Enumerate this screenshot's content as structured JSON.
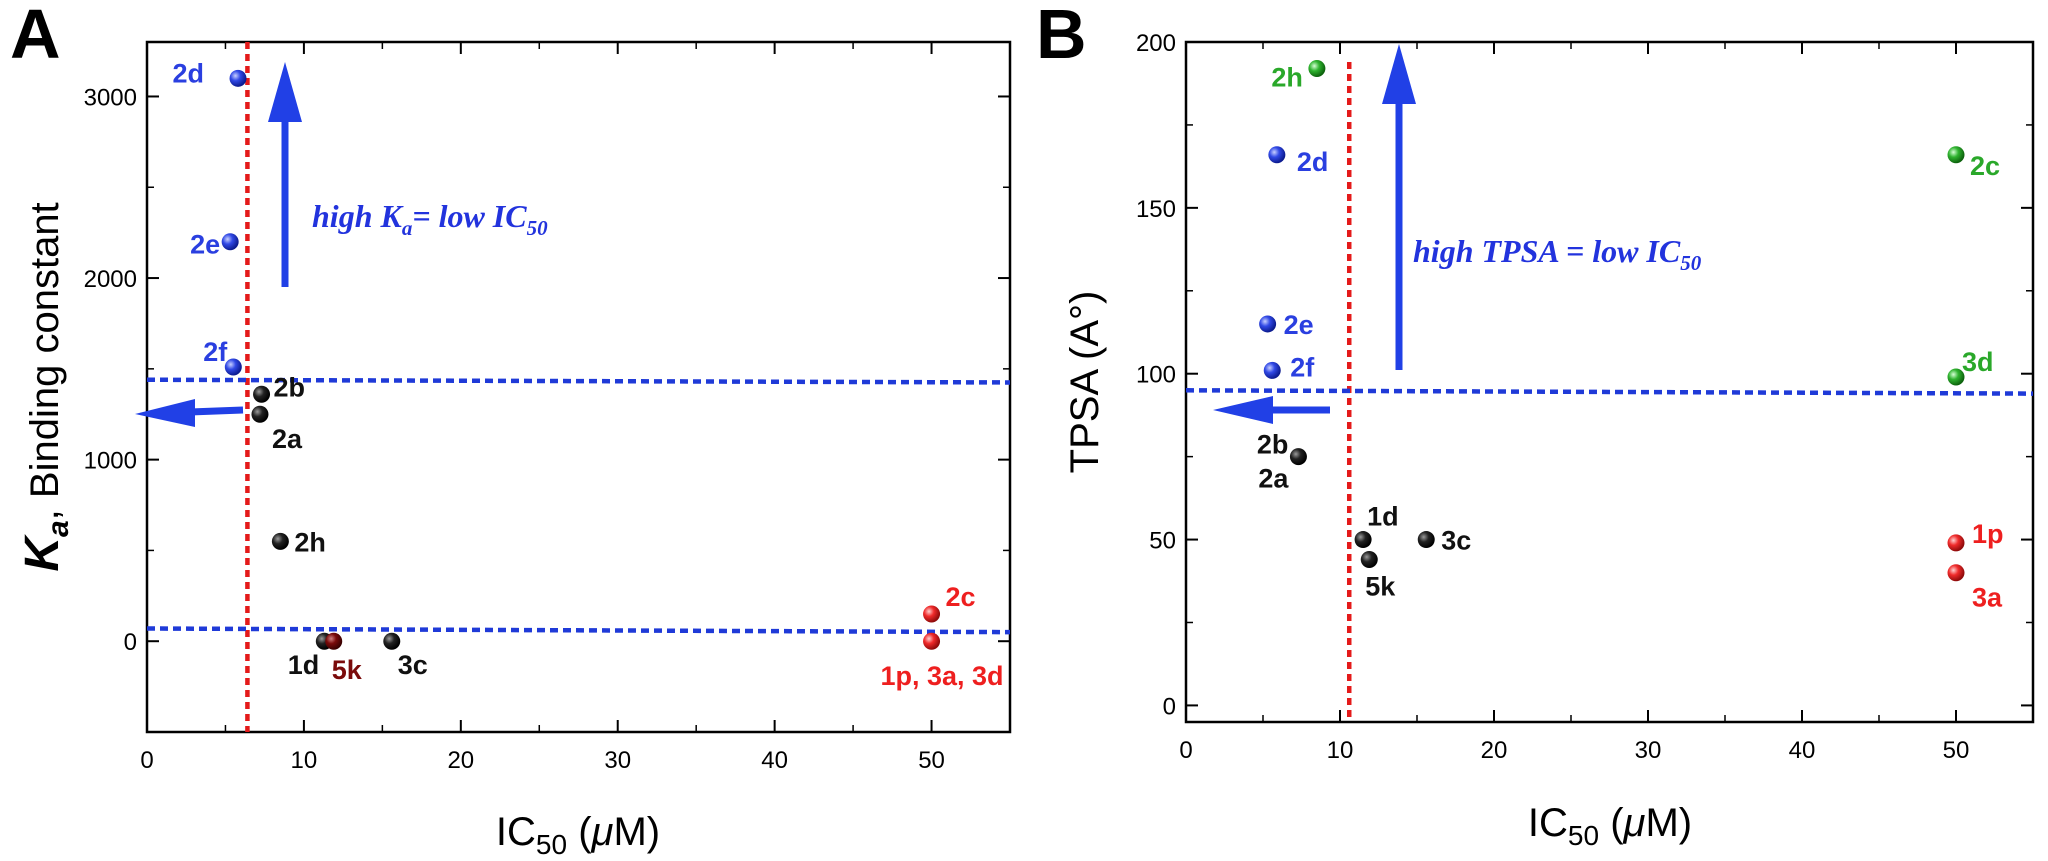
{
  "colors": {
    "black": "#111111",
    "blue": "#2a3fe0",
    "green": "#2aa82a",
    "red": "#ee1f1f",
    "darkred": "#7a0a0a",
    "ref_blue": "#1f3ad8",
    "ref_red": "#e41a1a",
    "arrow": "#2140e6",
    "anno": "#2233dd"
  },
  "chart_data": [
    {
      "panel": "A",
      "type": "scatter",
      "xlabel_main": "IC",
      "xlabel_sub": "50",
      "xlabel_tail": " (",
      "xlabel_mu": "μ",
      "xlabel_end": "M)",
      "ylabel_main": "K",
      "ylabel_sub": "a",
      "ylabel_tail": ", Binding constant",
      "xlim": [
        0,
        55
      ],
      "ylim": [
        -500,
        3300
      ],
      "xticks": [
        0,
        10,
        20,
        30,
        40,
        50
      ],
      "yticks": [
        0,
        1000,
        2000,
        3000
      ],
      "xtick_labels": [
        "0",
        "10",
        "20",
        "30",
        "40",
        "50"
      ],
      "ytick_labels": [
        "0",
        "1000",
        "2000",
        "3000"
      ],
      "points": [
        {
          "label": "2d",
          "x": 5.8,
          "y": 3100,
          "color": "blue"
        },
        {
          "label": "2e",
          "x": 5.3,
          "y": 2200,
          "color": "blue"
        },
        {
          "label": "2f",
          "x": 5.5,
          "y": 1510,
          "color": "blue"
        },
        {
          "label": "2b",
          "x": 7.3,
          "y": 1360,
          "color": "black"
        },
        {
          "label": "2a",
          "x": 7.2,
          "y": 1250,
          "color": "black"
        },
        {
          "label": "2h",
          "x": 8.5,
          "y": 550,
          "color": "black"
        },
        {
          "label": "1d",
          "x": 11.3,
          "y": 0,
          "color": "black"
        },
        {
          "label": "5k",
          "x": 11.9,
          "y": 0,
          "color": "darkred"
        },
        {
          "label": "3c",
          "x": 15.6,
          "y": 0,
          "color": "black"
        },
        {
          "label": "2c",
          "x": 50,
          "y": 150,
          "color": "red"
        },
        {
          "label": "1p, 3a, 3d",
          "x": 50,
          "y": 0,
          "color": "red"
        }
      ],
      "ref_lines": {
        "vertical_x": 6.4,
        "horizontal_upper": [
          1440,
          1425
        ],
        "horizontal_lower": [
          70,
          50
        ]
      },
      "annotation": {
        "main": "high K",
        "sub": "a",
        "tail": "= low IC",
        "sub2": "50"
      }
    },
    {
      "panel": "B",
      "type": "scatter",
      "xlabel_main": "IC",
      "xlabel_sub": "50",
      "xlabel_tail": " (",
      "xlabel_mu": "μ",
      "xlabel_end": "M)",
      "ylabel": "TPSA (A°)",
      "xlim": [
        0,
        55
      ],
      "ylim": [
        -5,
        200
      ],
      "xticks": [
        0,
        10,
        20,
        30,
        40,
        50
      ],
      "yticks": [
        0,
        50,
        100,
        150,
        200
      ],
      "xtick_labels": [
        "0",
        "10",
        "20",
        "30",
        "40",
        "50"
      ],
      "ytick_labels": [
        "0",
        "50",
        "100",
        "150",
        "200"
      ],
      "points": [
        {
          "label": "2h",
          "x": 8.5,
          "y": 192,
          "color": "green"
        },
        {
          "label": "2d",
          "x": 5.9,
          "y": 166,
          "color": "blue"
        },
        {
          "label": "2c",
          "x": 50,
          "y": 166,
          "color": "green"
        },
        {
          "label": "2e",
          "x": 5.3,
          "y": 115,
          "color": "blue"
        },
        {
          "label": "2f",
          "x": 5.6,
          "y": 101,
          "color": "blue"
        },
        {
          "label": "3d",
          "x": 50,
          "y": 99,
          "color": "green"
        },
        {
          "label": "2b, 2a",
          "x": 7.3,
          "y": 75,
          "color": "black"
        },
        {
          "label": "1d",
          "x": 11.5,
          "y": 50,
          "color": "black"
        },
        {
          "label": "3c",
          "x": 15.6,
          "y": 50,
          "color": "black"
        },
        {
          "label": "5k",
          "x": 11.9,
          "y": 44,
          "color": "black"
        },
        {
          "label": "1p",
          "x": 50,
          "y": 49,
          "color": "red"
        },
        {
          "label": "3a",
          "x": 50,
          "y": 40,
          "color": "red"
        }
      ],
      "ref_lines": {
        "vertical_x": 10.6,
        "horizontal": [
          95,
          94
        ]
      },
      "annotation": {
        "main": "high TPSA = low IC",
        "sub": "50"
      }
    }
  ]
}
